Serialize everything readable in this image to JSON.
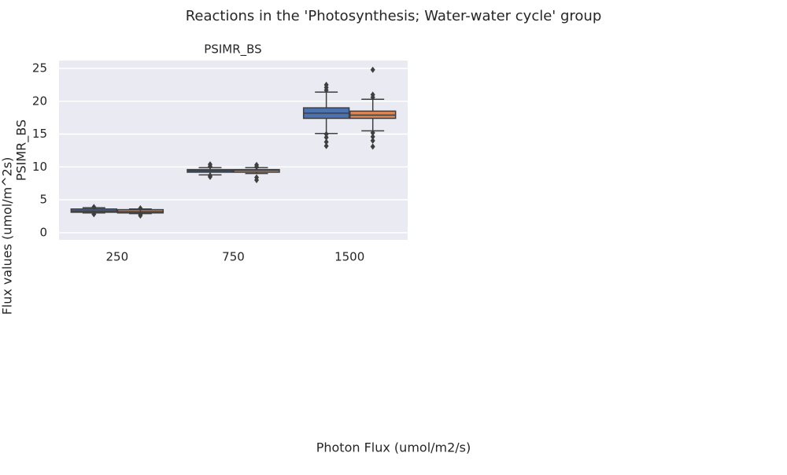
{
  "chart_data": {
    "type": "box",
    "title": "Reactions in the 'Photosynthesis; Water-water cycle' group",
    "subplot_title": "PSIMR_BS",
    "ylabel": "PSIMR_BS",
    "figure_ylabel": "Flux values (umol/m^2s)",
    "xlabel": "Photon Flux (umol/m2/s)",
    "categories": [
      "250",
      "750",
      "1500"
    ],
    "ylim": [
      -1.1,
      26.2
    ],
    "yticks": [
      0,
      5,
      10,
      15,
      20,
      25
    ],
    "grid": true,
    "background": "#eaeaf2",
    "series": [
      {
        "color": "#4c72b0",
        "whislo": [
          3.0,
          8.8,
          15.1
        ],
        "q1": [
          3.1,
          9.2,
          17.4
        ],
        "med": [
          3.3,
          9.4,
          18.2
        ],
        "q3": [
          3.6,
          9.6,
          19.0
        ],
        "whishi": [
          3.8,
          9.9,
          21.4
        ],
        "fliers": [
          [
            2.8,
            3.9
          ],
          [
            8.5,
            8.7,
            10.1,
            10.4
          ],
          [
            13.2,
            13.8,
            14.5,
            15.0,
            21.7,
            22.1,
            22.5
          ]
        ]
      },
      {
        "color": "#dd8452",
        "whislo": [
          2.9,
          9.0,
          15.5
        ],
        "q1": [
          3.0,
          9.2,
          17.4
        ],
        "med": [
          3.2,
          9.5,
          17.9
        ],
        "q3": [
          3.5,
          9.6,
          18.5
        ],
        "whishi": [
          3.6,
          9.9,
          20.3
        ],
        "fliers": [
          [
            2.6,
            2.8,
            3.7
          ],
          [
            8.0,
            8.4,
            10.0,
            10.3
          ],
          [
            13.1,
            14.0,
            14.6,
            15.2,
            20.6,
            21.0,
            24.8
          ]
        ]
      }
    ]
  }
}
